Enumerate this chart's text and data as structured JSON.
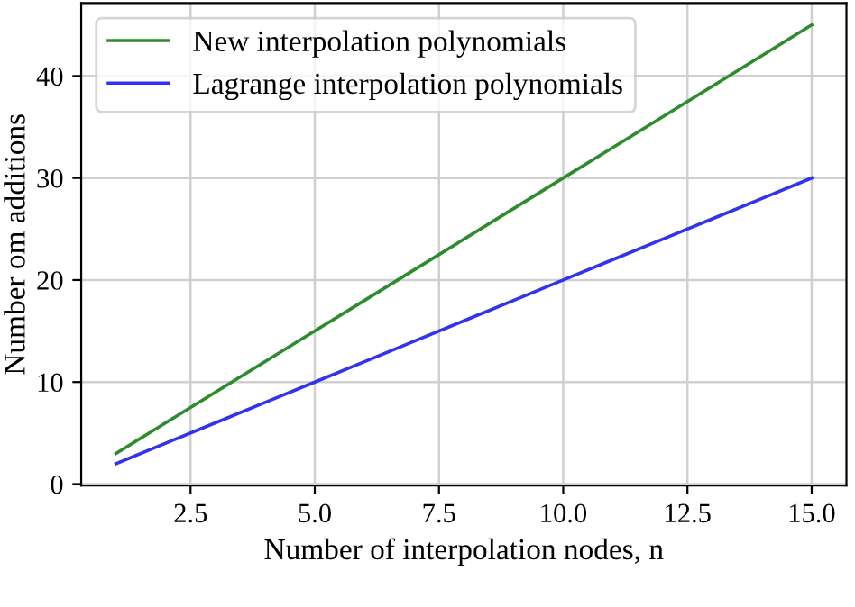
{
  "chart_data": {
    "type": "line",
    "xlabel": "Number of interpolation nodes, n",
    "ylabel": "Number om additions",
    "x": [
      1,
      2,
      3,
      4,
      5,
      6,
      7,
      8,
      9,
      10,
      11,
      12,
      13,
      14,
      15
    ],
    "series": [
      {
        "name": "New interpolation polynomials",
        "color": "#2e8b2e",
        "values": [
          3,
          6,
          9,
          12,
          15,
          18,
          21,
          24,
          27,
          30,
          33,
          36,
          39,
          42,
          45
        ]
      },
      {
        "name": "Lagrange interpolation polynomials",
        "color": "#3333ee",
        "values": [
          2,
          4,
          6,
          8,
          10,
          12,
          14,
          16,
          18,
          20,
          22,
          24,
          26,
          28,
          30
        ]
      }
    ],
    "xlim": [
      0.3,
      15.7
    ],
    "ylim": [
      -0.15,
      47.15
    ],
    "xticks": [
      {
        "value": 2.5,
        "label": "2.5"
      },
      {
        "value": 5,
        "label": "5.0"
      },
      {
        "value": 7.5,
        "label": "7.5"
      },
      {
        "value": 10,
        "label": "10.0"
      },
      {
        "value": 12.5,
        "label": "12.5"
      },
      {
        "value": 15,
        "label": "15.0"
      }
    ],
    "yticks": [
      0,
      10,
      20,
      30,
      40
    ],
    "grid": true,
    "legend": "top left",
    "marker": "none",
    "line_style": "solid"
  }
}
